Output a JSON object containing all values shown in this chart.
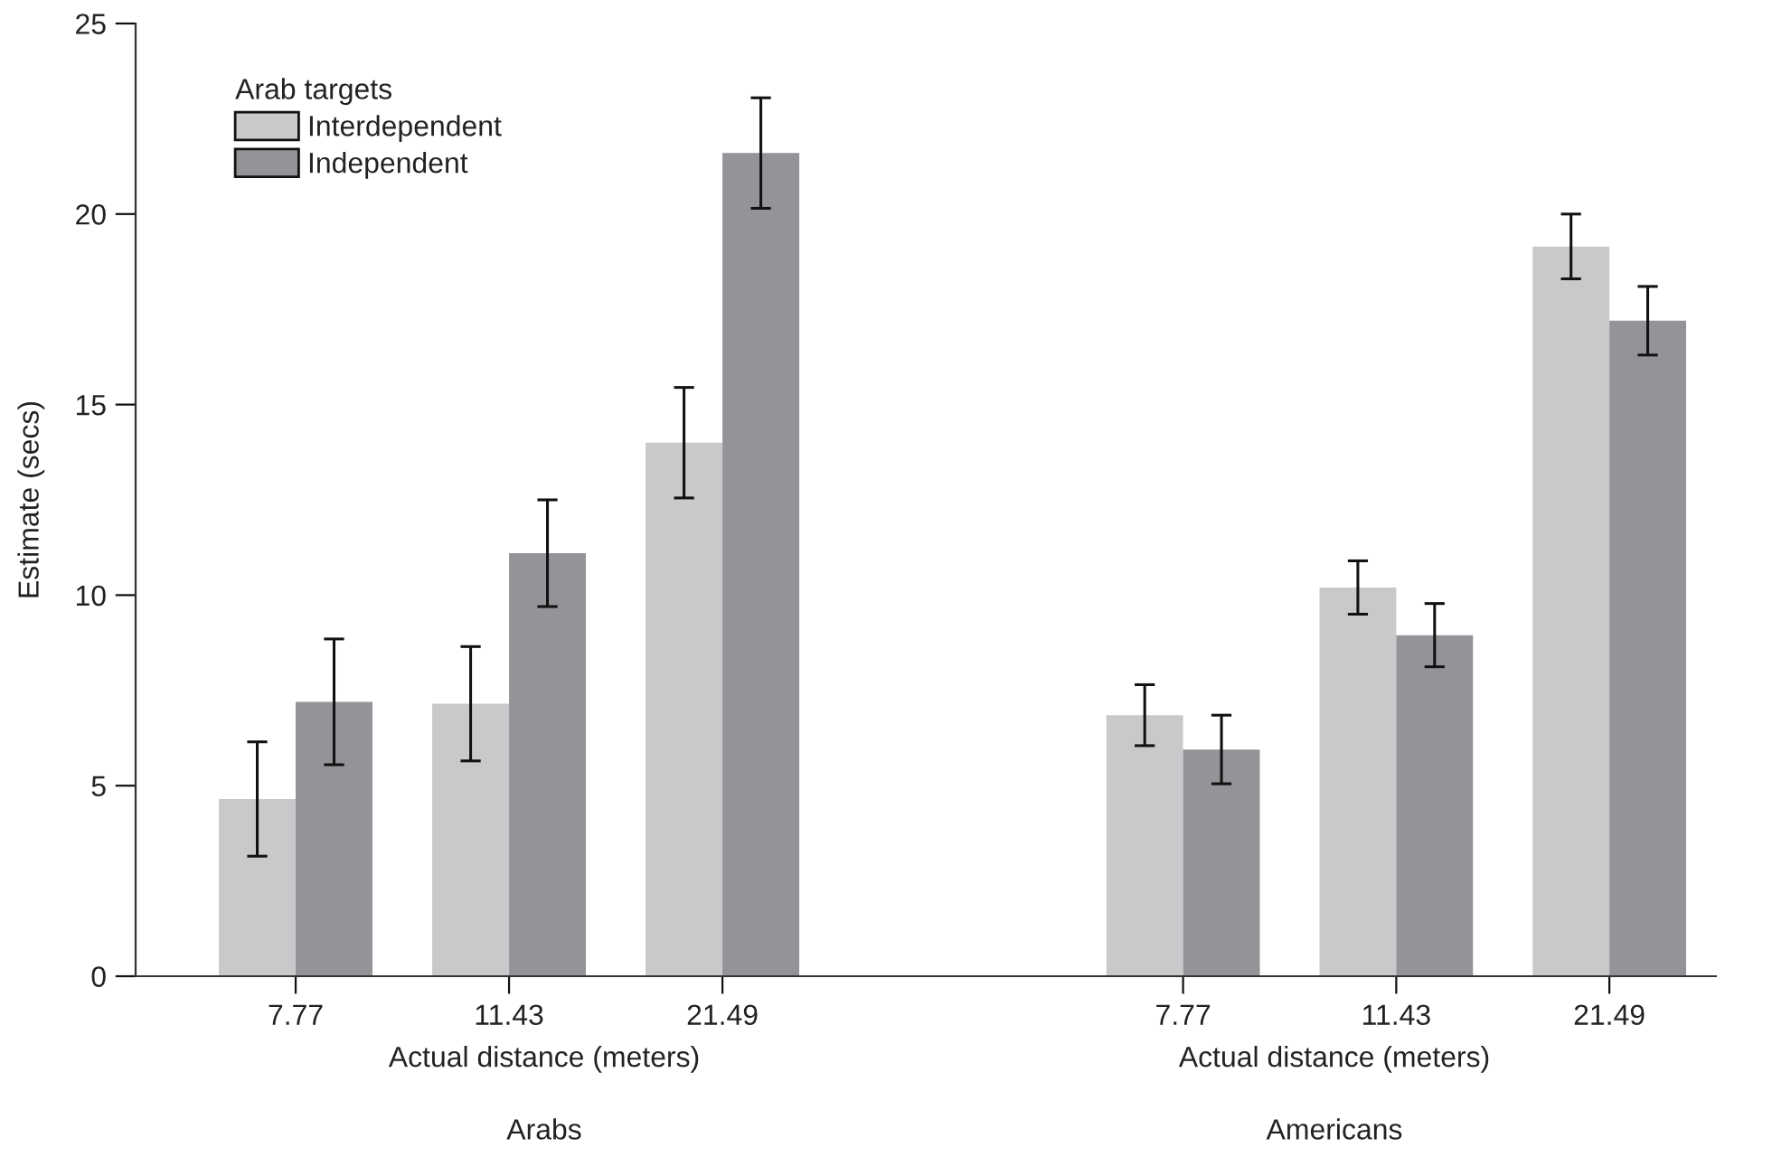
{
  "chart_data": [
    {
      "type": "bar",
      "title": "Arabs",
      "xlabel": "Actual distance (meters)",
      "ylabel": "Estimate (secs)",
      "categories": [
        "7.77",
        "11.43",
        "21.49"
      ],
      "ylim": [
        0,
        25
      ],
      "yticks": [
        0,
        5,
        10,
        15,
        20,
        25
      ],
      "legend": "top left",
      "legend_title": "Arab targets",
      "grid": false,
      "series": [
        {
          "name": "Interdependent",
          "color": "#c8c9cb",
          "values": [
            4.65,
            7.15,
            14.0
          ],
          "errors": [
            1.5,
            1.5,
            1.45
          ]
        },
        {
          "name": "Independent",
          "color": "#939498",
          "values": [
            7.2,
            11.1,
            21.6
          ],
          "errors": [
            1.65,
            1.4,
            1.45
          ]
        }
      ]
    },
    {
      "type": "bar",
      "title": "Americans",
      "xlabel": "Actual distance (meters)",
      "categories": [
        "7.77",
        "11.43",
        "21.49"
      ],
      "ylim": [
        0,
        25
      ],
      "tick_labels": "x",
      "grid": false,
      "series": [
        {
          "color": "#c8c9cb",
          "values": [
            6.85,
            10.2,
            19.15
          ],
          "errors": [
            0.8,
            0.7,
            0.85
          ]
        },
        {
          "color": "#939498",
          "values": [
            5.95,
            8.95,
            17.2
          ],
          "errors": [
            0.9,
            0.83,
            0.9
          ]
        }
      ]
    }
  ]
}
